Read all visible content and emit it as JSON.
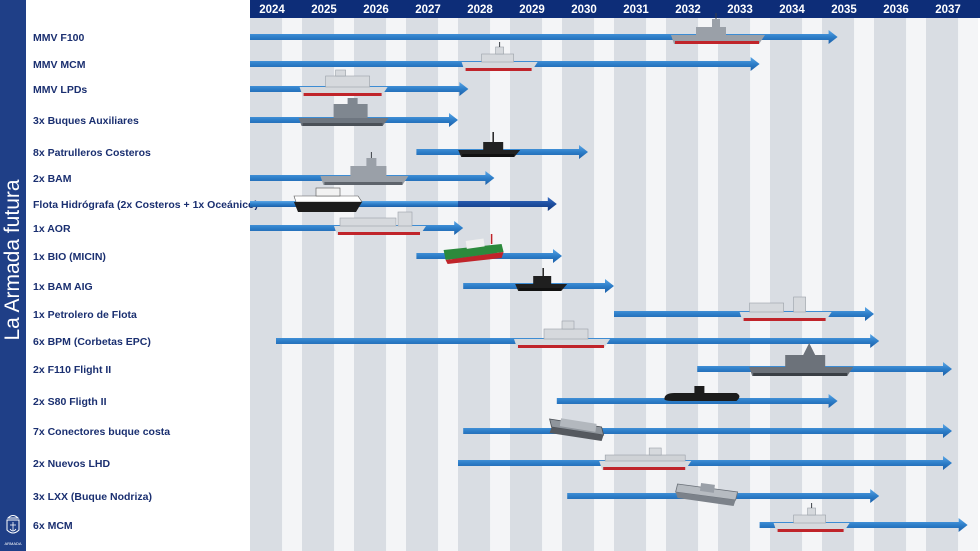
{
  "sidebar": {
    "title": "La Armada futura",
    "emblem_text": "ARMADA"
  },
  "colors": {
    "bar": "#2d7ec9",
    "bar_dark": "#1d4ea0",
    "label": "#1a2f70",
    "header": "#0d2d78",
    "stripe": "#d9dde3"
  },
  "chart_data": {
    "type": "gantt",
    "years": [
      "2024",
      "2025",
      "2026",
      "2027",
      "2028",
      "2029",
      "2030",
      "2031",
      "2032",
      "2033",
      "2034",
      "2035",
      "2036",
      "2037"
    ],
    "x_start_year": 2024,
    "items": [
      {
        "label": "MMV F100",
        "start": 2024.0,
        "end": 2035.3,
        "ship": "frigate",
        "ship_at": 2033.0
      },
      {
        "label": "MMV MCM",
        "start": 2024.0,
        "end": 2033.8,
        "ship": "mcm",
        "ship_at": 2028.8
      },
      {
        "label": "MMV LPDs",
        "start": 2024.0,
        "end": 2028.2,
        "ship": "lpd",
        "ship_at": 2025.8
      },
      {
        "label": "3x Buques Auxiliares",
        "start": 2024.0,
        "end": 2028.0,
        "ship": "auxiliary",
        "ship_at": 2025.8
      },
      {
        "label": "8x Patrulleros Costeros",
        "start": 2027.2,
        "end": 2030.5,
        "ship": "patrol",
        "ship_at": 2028.6
      },
      {
        "label": "2x BAM",
        "start": 2024.0,
        "end": 2028.7,
        "ship": "bam",
        "ship_at": 2026.2
      },
      {
        "label": "Flota Hidrógrafa (2x Costeros + 1x Oceánico)",
        "start": 2024.0,
        "end": 2029.9,
        "dark_from": 2028.0,
        "ship": "hydro",
        "ship_at": 2025.5
      },
      {
        "label": "1x AOR",
        "start": 2024.0,
        "end": 2028.1,
        "ship": "aor",
        "ship_at": 2026.5
      },
      {
        "label": "1x BIO (MICIN)",
        "start": 2027.2,
        "end": 2030.0,
        "ship": "research",
        "ship_at": 2028.3
      },
      {
        "label": "1x BAM AIG",
        "start": 2028.1,
        "end": 2031.0,
        "ship": "bam_aig",
        "ship_at": 2029.6
      },
      {
        "label": "1x Petrolero de Flota",
        "start": 2031.0,
        "end": 2036.0,
        "ship": "tanker",
        "ship_at": 2034.3
      },
      {
        "label": "6x BPM (Corbetas EPC)",
        "start": 2024.5,
        "end": 2036.1,
        "ship": "corvette",
        "ship_at": 2030.0
      },
      {
        "label": "2x F110 Flight II",
        "start": 2032.6,
        "end": 2037.5,
        "ship": "f110",
        "ship_at": 2034.6
      },
      {
        "label": "2x S80 Fligth II",
        "start": 2029.9,
        "end": 2035.3,
        "ship": "submarine",
        "ship_at": 2032.7
      },
      {
        "label": "7x Conectores buque costa",
        "start": 2028.1,
        "end": 2037.5,
        "ship": "connector",
        "ship_at": 2030.3
      },
      {
        "label": "2x Nuevos LHD",
        "start": 2028.0,
        "end": 2037.5,
        "ship": "lhd",
        "ship_at": 2031.6
      },
      {
        "label": "3x LXX (Buque Nodriza)",
        "start": 2030.1,
        "end": 2036.1,
        "ship": "lxx",
        "ship_at": 2032.8
      },
      {
        "label": "6x MCM",
        "start": 2033.8,
        "end": 2037.8,
        "ship": "mcm2",
        "ship_at": 2034.8
      }
    ]
  }
}
